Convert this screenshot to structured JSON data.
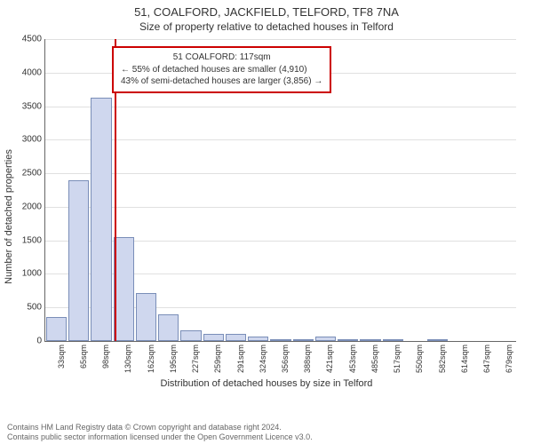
{
  "title": "51, COALFORD, JACKFIELD, TELFORD, TF8 7NA",
  "subtitle": "Size of property relative to detached houses in Telford",
  "ylabel": "Number of detached properties",
  "xlabel": "Distribution of detached houses by size in Telford",
  "chart": {
    "type": "histogram",
    "ylim": [
      0,
      4500
    ],
    "ytick_step": 500,
    "bar_fill": "#cfd7ee",
    "bar_border": "#7a8eb8",
    "grid_color": "#e0e0e0",
    "marker_color": "#cc0000",
    "marker_value": 117,
    "categories": [
      "33sqm",
      "65sqm",
      "98sqm",
      "130sqm",
      "162sqm",
      "195sqm",
      "227sqm",
      "259sqm",
      "291sqm",
      "324sqm",
      "356sqm",
      "388sqm",
      "421sqm",
      "453sqm",
      "485sqm",
      "517sqm",
      "550sqm",
      "582sqm",
      "614sqm",
      "647sqm",
      "679sqm"
    ],
    "values": [
      360,
      2400,
      3630,
      1550,
      720,
      400,
      160,
      100,
      100,
      60,
      20,
      20,
      60,
      10,
      5,
      5,
      0,
      5,
      0,
      0,
      0
    ],
    "bar_gap_ratio": 0.08
  },
  "annotation": {
    "line1": "51 COALFORD: 117sqm",
    "line2": "← 55% of detached houses are smaller (4,910)",
    "line3": "43% of semi-detached houses are larger (3,856) →"
  },
  "footer": {
    "line1": "Contains HM Land Registry data © Crown copyright and database right 2024.",
    "line2": "Contains public sector information licensed under the Open Government Licence v3.0."
  }
}
